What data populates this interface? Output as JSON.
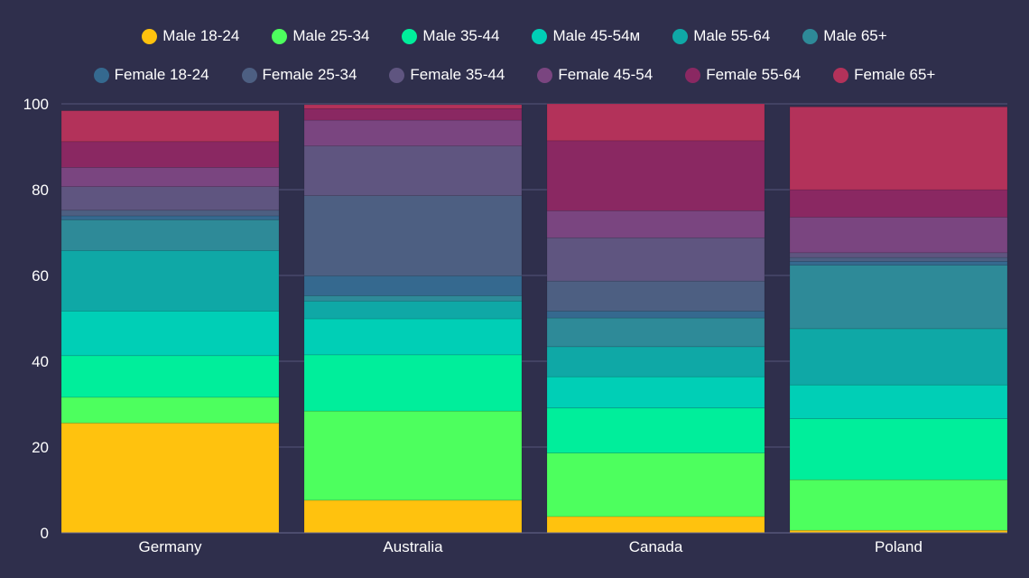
{
  "chart_data": {
    "type": "bar",
    "stacked": true,
    "normalized_percent": true,
    "categories": [
      "Germany",
      "Australia",
      "Canada",
      "Poland"
    ],
    "ylim": [
      0,
      100
    ],
    "yticks": [
      0,
      20,
      40,
      60,
      80,
      100
    ],
    "legend_position": "top",
    "grid": true,
    "series": [
      {
        "name": "Male 18-24",
        "color": "#ffc20e",
        "values": [
          25.6,
          7.6,
          3.8,
          0.6
        ]
      },
      {
        "name": "Male 25-34",
        "color": "#4dff5e",
        "values": [
          6.0,
          20.8,
          14.8,
          11.8
        ]
      },
      {
        "name": "Male 35-44",
        "color": "#00ee9b",
        "values": [
          9.7,
          13.1,
          10.5,
          14.2
        ]
      },
      {
        "name": "Male 45-54м",
        "color": "#00cfb6",
        "values": [
          10.4,
          8.4,
          7.3,
          7.9
        ]
      },
      {
        "name": "Male 55-64",
        "color": "#0fa8a6",
        "values": [
          14.1,
          4.1,
          7.0,
          13.1
        ]
      },
      {
        "name": "Male 65+",
        "color": "#2e8a98",
        "values": [
          7.2,
          1.3,
          6.7,
          14.8
        ]
      },
      {
        "name": "Female 18-24",
        "color": "#35698f",
        "values": [
          0.9,
          4.6,
          1.6,
          0.9
        ]
      },
      {
        "name": "Female 25-34",
        "color": "#4d5f82",
        "values": [
          1.3,
          18.7,
          7.0,
          0.9
        ]
      },
      {
        "name": "Female 35-44",
        "color": "#5f5580",
        "values": [
          5.5,
          11.6,
          10.1,
          1.1
        ]
      },
      {
        "name": "Female 45-54",
        "color": "#7a4580",
        "values": [
          4.5,
          6.0,
          6.3,
          8.3
        ]
      },
      {
        "name": "Female 55-64",
        "color": "#8a2862",
        "values": [
          6.0,
          2.7,
          16.3,
          6.4
        ]
      },
      {
        "name": "Female 65+",
        "color": "#b3325a",
        "values": [
          7.2,
          0.9,
          8.6,
          19.3
        ]
      }
    ]
  }
}
